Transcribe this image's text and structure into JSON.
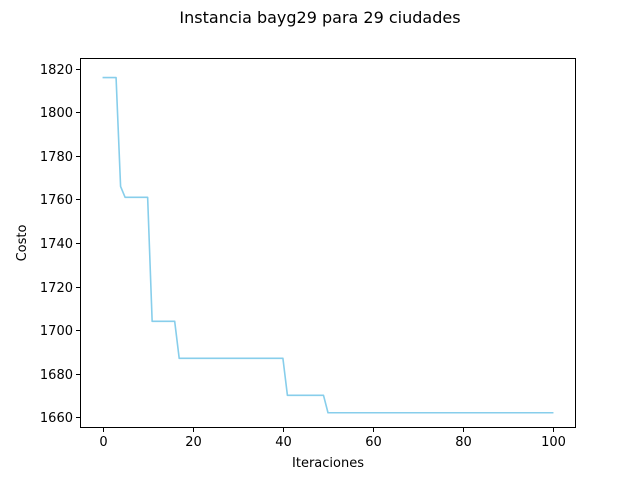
{
  "chart_data": {
    "type": "line",
    "title": "Instancia bayg29 para 29 ciudades",
    "xlabel": "Iteraciones",
    "ylabel": "Costo",
    "xlim": [
      -5,
      105
    ],
    "ylim": [
      1655,
      1825
    ],
    "xticks": [
      0,
      20,
      40,
      60,
      80,
      100
    ],
    "yticks": [
      1660,
      1680,
      1700,
      1720,
      1740,
      1760,
      1780,
      1800,
      1820
    ],
    "grid": false,
    "series": [
      {
        "color": "#87ceeb",
        "x": [
          0,
          3,
          4,
          5,
          10,
          11,
          16,
          17,
          40,
          41,
          49,
          50,
          100
        ],
        "y": [
          1816,
          1816,
          1766,
          1761,
          1761,
          1704,
          1704,
          1687,
          1687,
          1670,
          1670,
          1662,
          1662
        ]
      }
    ]
  }
}
